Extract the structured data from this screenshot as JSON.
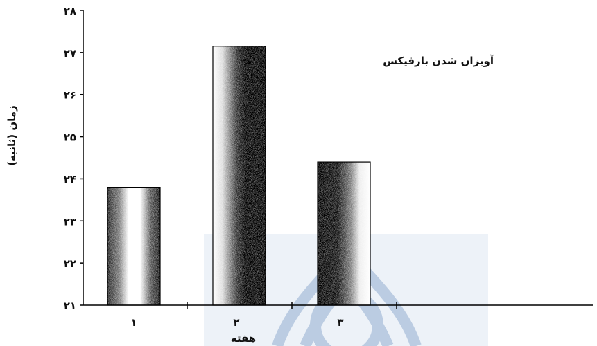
{
  "chart_data": {
    "type": "bar",
    "title": "",
    "annotation": "آویزان شدن بارفیکس",
    "xlabel": "هفته",
    "ylabel": "زمان (ثانیه)",
    "categories": [
      "۱",
      "۲",
      "۳"
    ],
    "values": [
      23.8,
      27.15,
      24.4
    ],
    "ylim": [
      21,
      28
    ],
    "yticks": [
      21,
      22,
      23,
      24,
      25,
      26,
      27,
      28
    ],
    "ytick_labels": [
      "۲۱",
      "۲۲",
      "۲۳",
      "۲۴",
      "۲۵",
      "۲۶",
      "۲۷",
      "۲۸"
    ],
    "grid": false,
    "legend": "none"
  },
  "watermark": {
    "visible": true,
    "color": "#7f9fc8"
  }
}
